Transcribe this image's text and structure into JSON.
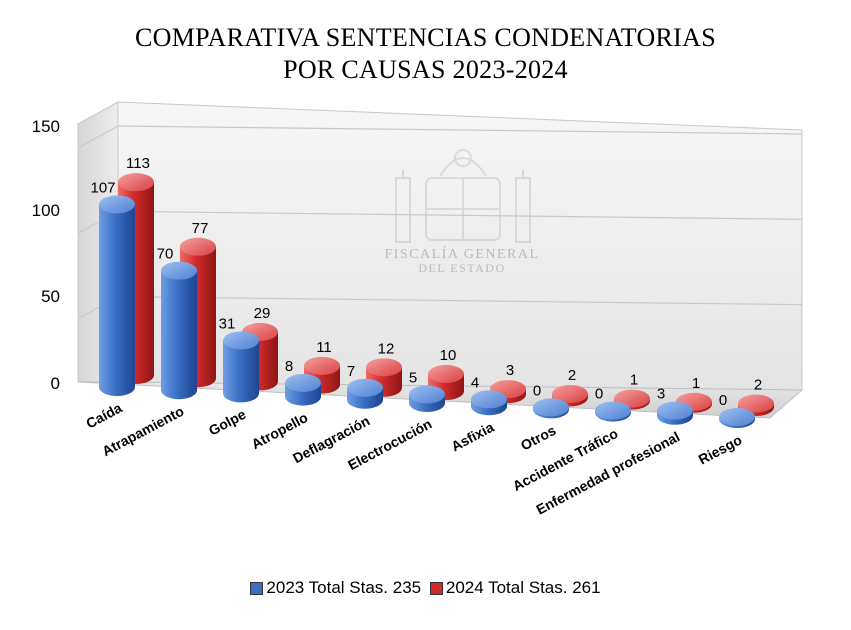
{
  "title": {
    "line1": "COMPARATIVA SENTENCIAS CONDENATORIAS",
    "line2": "POR CAUSAS 2023-2024"
  },
  "watermark": {
    "line1": "FISCALÍA GENERAL",
    "line2": "DEL ESTADO"
  },
  "colors": {
    "series_2023": "#3a6fc4",
    "series_2024": "#d02a2a"
  },
  "chart_data": {
    "type": "bar",
    "title": "COMPARATIVA SENTENCIAS CONDENATORIAS POR CAUSAS 2023-2024",
    "categories": [
      "Caída",
      "Atrapamiento",
      "Golpe",
      "Atropello",
      "Deflagración",
      "Electrocución",
      "Asfixia",
      "Otros",
      "Accidente Tráfico",
      "Enfermedad profesional",
      "Riesgo"
    ],
    "series": [
      {
        "name": "2023 Total Stas. 235",
        "values": [
          107,
          70,
          31,
          8,
          7,
          5,
          4,
          0,
          0,
          3,
          0
        ]
      },
      {
        "name": "2024 Total Stas. 261",
        "values": [
          113,
          77,
          29,
          11,
          12,
          10,
          3,
          2,
          1,
          1,
          2
        ]
      }
    ],
    "ylim": [
      0,
      150
    ],
    "yticks": [
      0,
      50,
      100,
      150
    ],
    "xlabel": "",
    "ylabel": "",
    "grid": true,
    "legend_position": "bottom"
  }
}
